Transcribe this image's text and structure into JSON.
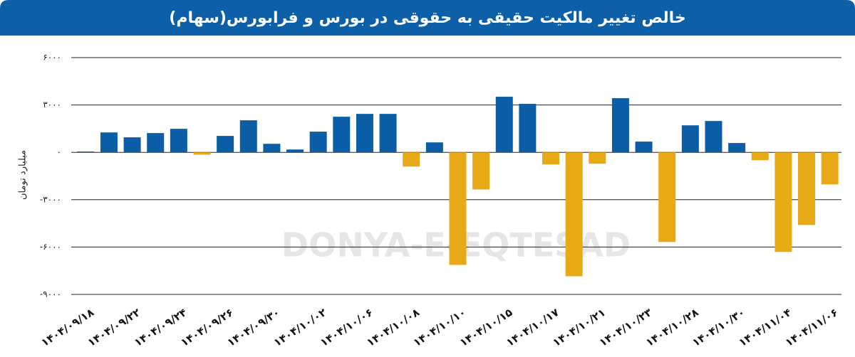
{
  "chart_data": {
    "type": "bar",
    "title": "خالص تغییر مالکیت حقیقی به حقوقی در بورس و فرابورس(سهام)",
    "y_label": "میلیارد تومان",
    "watermark": "DONYA-E-EQTESAD",
    "categories": [
      "۱۴۰۴/۰۹/۱۸",
      null,
      "۱۴۰۴/۰۹/۲۲",
      null,
      "۱۴۰۴/۰۹/۲۴",
      null,
      "۱۴۰۴/۰۹/۲۶",
      null,
      "۱۴۰۴/۰۹/۳۰",
      null,
      "۱۴۰۴/۱۰/۰۲",
      null,
      "۱۴۰۴/۱۰/۰۶",
      null,
      "۱۴۰۴/۱۰/۰۸",
      null,
      "۱۴۰۴/۱۰/۱۰",
      null,
      "۱۴۰۴/۱۰/۱۵",
      null,
      "۱۴۰۴/۱۰/۱۷",
      null,
      "۱۴۰۴/۱۰/۲۱",
      null,
      "۱۴۰۴/۱۰/۲۳",
      null,
      "۱۴۰۴/۱۰/۲۸",
      null,
      "۱۴۰۴/۱۰/۳۰",
      null,
      "۱۴۰۴/۱۱/۰۴",
      null,
      "۱۴۰۴/۱۱/۰۶"
    ],
    "values": [
      50,
      1260,
      950,
      1220,
      1490,
      -150,
      1040,
      2030,
      540,
      180,
      1310,
      2255,
      2435,
      2435,
      -900,
      630,
      -7130,
      -2350,
      3520,
      3070,
      -770,
      -7850,
      -720,
      3430,
      680,
      -5680,
      1710,
      1985,
      590,
      -500,
      -6310,
      -4600,
      -2030
    ],
    "positive_color": "#0b5ea6",
    "negative_color": "#e8a917",
    "ylim": [
      -9000,
      6000
    ],
    "yticks": [
      {
        "value": -9000,
        "label": "-۹۰۰۰"
      },
      {
        "value": -6000,
        "label": "-۶۰۰۰"
      },
      {
        "value": -3000,
        "label": "-۳۰۰۰"
      },
      {
        "value": 0,
        "label": "۰"
      },
      {
        "value": 3000,
        "label": "۳۰۰۰"
      },
      {
        "value": 6000,
        "label": "۶۰۰۰"
      }
    ],
    "grid": true
  }
}
